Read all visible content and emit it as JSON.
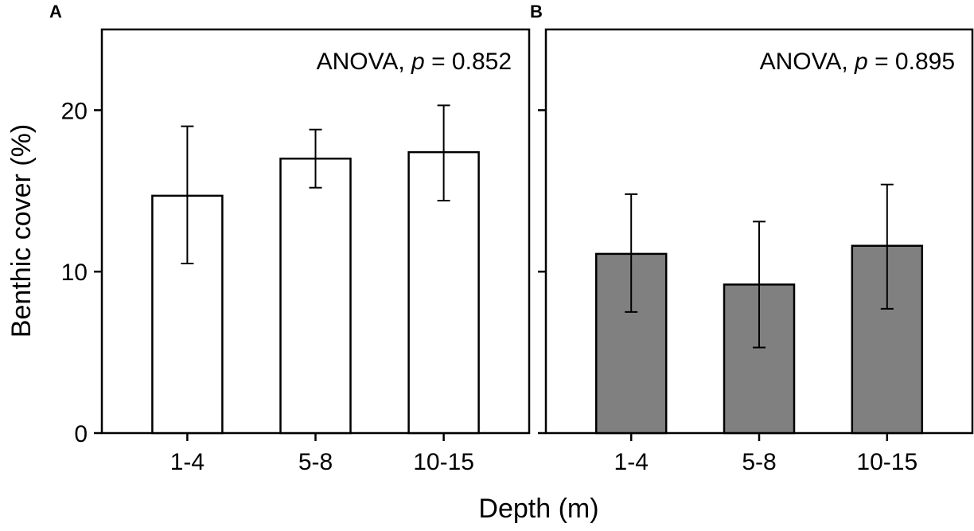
{
  "chart_data": {
    "type": "bar",
    "ylabel": "Benthic cover (%)",
    "xlabel": "Depth (m)",
    "ylim": [
      0,
      25
    ],
    "yticks": [
      0,
      10,
      20
    ],
    "categories": [
      "1-4",
      "5-8",
      "10-15"
    ],
    "panels": [
      {
        "label": "A",
        "annotation_prefix": "ANOVA, ",
        "annotation_p": "p",
        "annotation_suffix": " = 0.852",
        "fill": "#ffffff",
        "values": [
          14.7,
          17.0,
          17.4
        ],
        "err_low": [
          10.5,
          15.2,
          14.4
        ],
        "err_high": [
          19.0,
          18.8,
          20.3
        ]
      },
      {
        "label": "B",
        "annotation_prefix": "ANOVA, ",
        "annotation_p": "p",
        "annotation_suffix": " = 0.895",
        "fill": "#808080",
        "values": [
          11.1,
          9.2,
          11.6
        ],
        "err_low": [
          7.5,
          5.3,
          7.7
        ],
        "err_high": [
          14.8,
          13.1,
          15.4
        ]
      }
    ]
  }
}
